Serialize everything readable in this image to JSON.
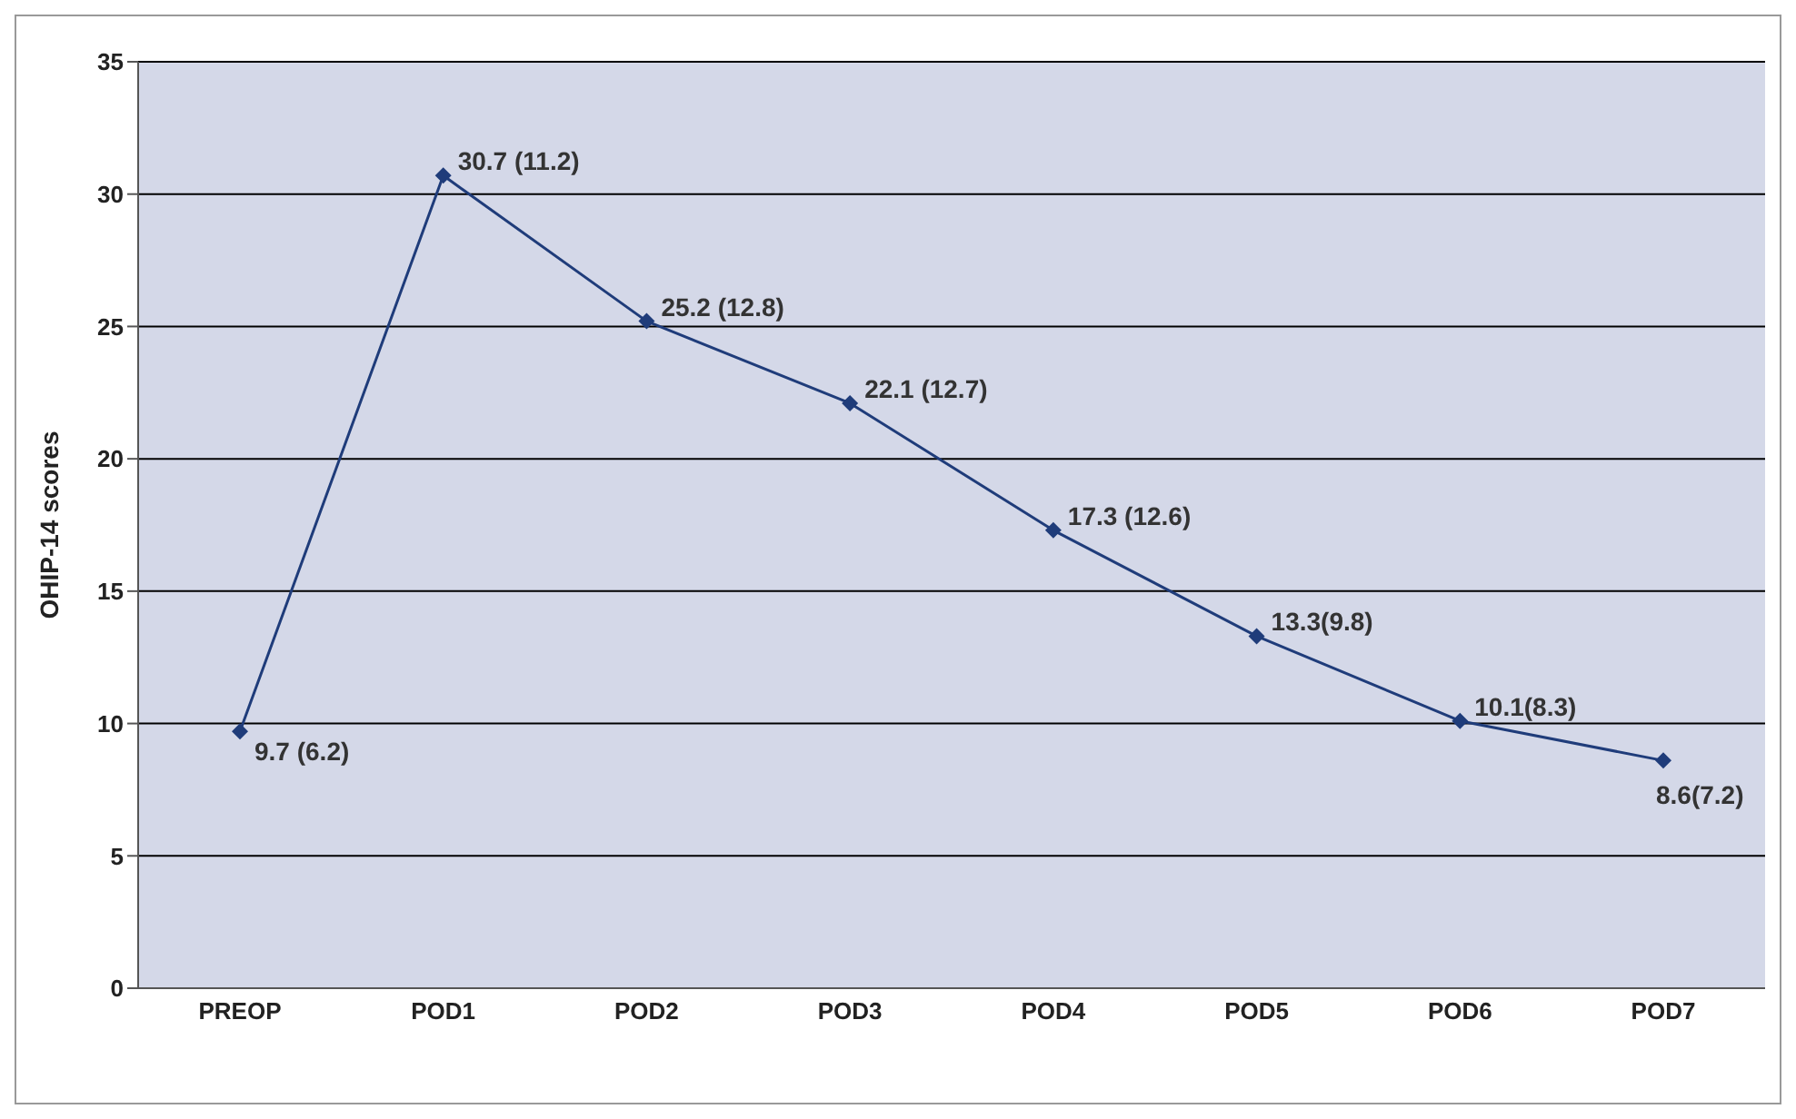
{
  "chart_data": {
    "type": "line",
    "ylabel": "OHIP-14 scores",
    "categories": [
      "PREOP",
      "POD1",
      "POD2",
      "POD3",
      "POD4",
      "POD5",
      "POD6",
      "POD7"
    ],
    "series": [
      {
        "color": "#1f3c7a",
        "values": [
          9.7,
          30.7,
          25.2,
          22.1,
          17.3,
          13.3,
          10.1,
          8.6
        ],
        "value_labels": [
          "9.7 (6.2)",
          "30.7 (11.2)",
          "25.2 (12.8)",
          "22.1 (12.7)",
          "17.3 (12.6)",
          "13.3(9.8)",
          "10.1(8.3)",
          "8.6(7.2)"
        ]
      }
    ],
    "ylim": [
      0,
      35
    ],
    "yticks": [
      0,
      5,
      10,
      15,
      20,
      25,
      30,
      35
    ],
    "grid": "y",
    "marker": "diamond",
    "line_style": "solid",
    "legend": false
  }
}
